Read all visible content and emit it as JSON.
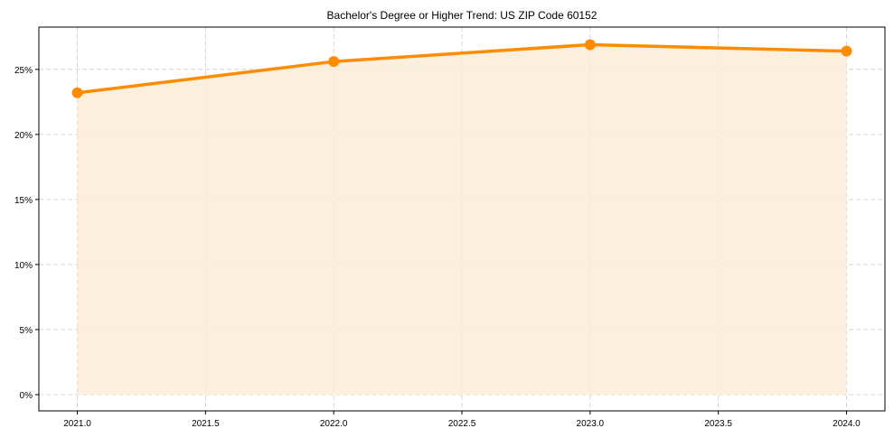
{
  "chart_data": {
    "type": "line",
    "title": "Bachelor's Degree or Higher Trend: US ZIP Code 60152",
    "xlabel": "",
    "ylabel": "",
    "x": [
      2021,
      2022,
      2023,
      2024
    ],
    "series": [
      {
        "name": "Bachelor's Degree or Higher",
        "values": [
          23.2,
          25.6,
          26.9,
          26.4
        ],
        "color": "#ff8c00",
        "fill": "#fdebd6"
      }
    ],
    "xlim": [
      2020.85,
      2024.15
    ],
    "ylim": [
      -1.25,
      28.25
    ],
    "xticks": [
      2021.0,
      2021.5,
      2022.0,
      2022.5,
      2023.0,
      2023.5,
      2024.0
    ],
    "xtick_labels": [
      "2021.0",
      "2021.5",
      "2022.0",
      "2022.5",
      "2023.0",
      "2023.5",
      "2024.0"
    ],
    "yticks": [
      0,
      5,
      10,
      15,
      20,
      25
    ],
    "ytick_labels": [
      "0%",
      "5%",
      "10%",
      "15%",
      "20%",
      "25%"
    ],
    "grid": true
  }
}
